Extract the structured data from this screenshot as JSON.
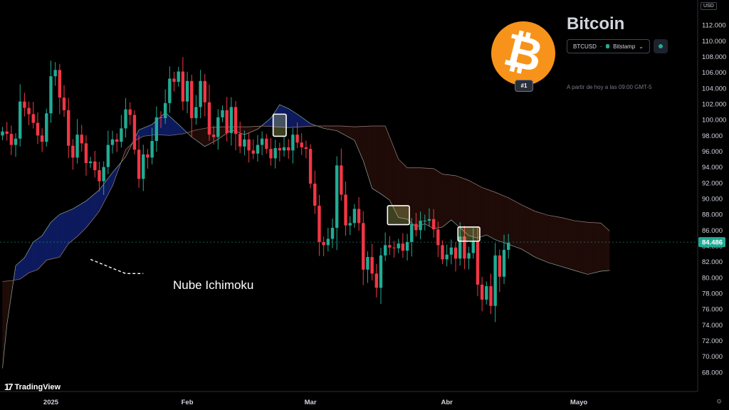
{
  "header": {
    "asset_name": "Bitcoin",
    "symbol": "BTCUSD",
    "exchange": "Bitstamp",
    "rank": "#1",
    "as_of": "A partir de hoy a las 09:00 GMT-5",
    "currency": "USD",
    "logo_glyph": "₿"
  },
  "brand": {
    "name": "TradingView",
    "mark": "17"
  },
  "annotation": {
    "label": "Nube Ichimoku"
  },
  "icons": {
    "logo": "bitcoin-logo-icon",
    "live": "live-status-icon",
    "settings": "gear-icon"
  },
  "colors": {
    "background": "#000000",
    "up": "#22ab94",
    "down": "#f23645",
    "bull_cloud": "#0d1b5e",
    "bear_cloud": "#1f0b08",
    "last_price": "#22ab94",
    "brand_orange": "#f7931a"
  },
  "chart_data": {
    "type": "candlestick",
    "title": "",
    "y_range": [
      67,
      113
    ],
    "y_ticks": [
      "112.000",
      "110.000",
      "108.000",
      "106.000",
      "104.000",
      "102.000",
      "100.000",
      "98.000",
      "96.000",
      "94.000",
      "92.000",
      "90.000",
      "88.000",
      "86.000",
      "84.000",
      "82.000",
      "80.000",
      "78.000",
      "76.000",
      "74.000",
      "72.000",
      "70.000",
      "68.000"
    ],
    "x_labels": [
      {
        "label": "2025",
        "day": 11
      },
      {
        "label": "Feb",
        "day": 42
      },
      {
        "label": "Mar",
        "day": 70
      },
      {
        "label": "Abr",
        "day": 101
      },
      {
        "label": "Mayo",
        "day": 131
      }
    ],
    "last_price": {
      "value": 84.486,
      "label": "84.486"
    },
    "closes": [
      98.5,
      98.2,
      96.8,
      97.6,
      102.3,
      101.5,
      100.7,
      99.6,
      98.0,
      97.2,
      100.8,
      105.5,
      106.3,
      102.8,
      101.2,
      96.7,
      95.2,
      98.1,
      97.0,
      94.5,
      94.7,
      93.6,
      92.2,
      94.0,
      96.8,
      97.5,
      97.2,
      98.9,
      101.3,
      100.6,
      96.2,
      92.5,
      95.6,
      95.2,
      97.3,
      100.3,
      100.2,
      102.1,
      105.2,
      104.8,
      106.1,
      102.3,
      104.9,
      100.2,
      101.6,
      104.9,
      102.2,
      98.1,
      97.8,
      100.3,
      101.2,
      98.3,
      101.6,
      98.2,
      96.6,
      97.5,
      96.1,
      95.7,
      96.8,
      97.6,
      96.3,
      95.1,
      96.4,
      96.1,
      96.5,
      96.1,
      98.1,
      97.1,
      96.5,
      96.3,
      91.9,
      89.1,
      84.5,
      84.1,
      84.9,
      86.3,
      94.2,
      90.5,
      86.6,
      86.9,
      88.7,
      86.9,
      81.0,
      82.6,
      80.5,
      78.7,
      82.8,
      84.1,
      83.8,
      83.7,
      84.3,
      83.4,
      84.5,
      86.8,
      86.0,
      87.2,
      87.2,
      87.4,
      86.1,
      84.1,
      82.3,
      82.9,
      83.8,
      82.4,
      85.2,
      82.4,
      83.1,
      84.6,
      79.1,
      77.2,
      78.9,
      76.4,
      82.8,
      80.1,
      83.5,
      84.4
    ],
    "ichimoku": {
      "description_label": "Nube Ichimoku",
      "span_a": [
        {
          "day": 0,
          "value": 68.5
        },
        {
          "day": 1,
          "value": 74.0
        },
        {
          "day": 3,
          "value": 81.5
        },
        {
          "day": 5,
          "value": 82.5
        },
        {
          "day": 7,
          "value": 84.5
        },
        {
          "day": 9,
          "value": 85.3
        },
        {
          "day": 11,
          "value": 87.0
        },
        {
          "day": 13,
          "value": 88.0
        },
        {
          "day": 16,
          "value": 88.7
        },
        {
          "day": 19,
          "value": 89.7
        },
        {
          "day": 22,
          "value": 91.1
        },
        {
          "day": 25,
          "value": 93.3
        },
        {
          "day": 28,
          "value": 95.3
        },
        {
          "day": 31,
          "value": 98.7
        },
        {
          "day": 34,
          "value": 99.4
        },
        {
          "day": 37,
          "value": 100.9
        },
        {
          "day": 40,
          "value": 99.4
        },
        {
          "day": 43,
          "value": 97.8
        },
        {
          "day": 46,
          "value": 96.6
        },
        {
          "day": 49,
          "value": 97.5
        },
        {
          "day": 52,
          "value": 98.7
        },
        {
          "day": 55,
          "value": 98.1
        },
        {
          "day": 58,
          "value": 98.8
        },
        {
          "day": 61,
          "value": 100.2
        },
        {
          "day": 63,
          "value": 101.9
        },
        {
          "day": 65,
          "value": 101.4
        },
        {
          "day": 67,
          "value": 100.7
        },
        {
          "day": 70,
          "value": 99.5
        },
        {
          "day": 73,
          "value": 98.9
        },
        {
          "day": 76,
          "value": 98.6
        },
        {
          "day": 80,
          "value": 97.4
        },
        {
          "day": 82,
          "value": 94.8
        },
        {
          "day": 84,
          "value": 91.3
        },
        {
          "day": 86,
          "value": 90.6
        },
        {
          "day": 88,
          "value": 89.8
        },
        {
          "day": 90,
          "value": 87.6
        },
        {
          "day": 92,
          "value": 87.4
        },
        {
          "day": 94,
          "value": 86.4
        },
        {
          "day": 96,
          "value": 86.8
        },
        {
          "day": 98,
          "value": 86.2
        },
        {
          "day": 100,
          "value": 86.4
        },
        {
          "day": 102,
          "value": 87.3
        },
        {
          "day": 104,
          "value": 86.3
        },
        {
          "day": 106,
          "value": 85.3
        },
        {
          "day": 108,
          "value": 85.0
        },
        {
          "day": 110,
          "value": 85.4
        },
        {
          "day": 112,
          "value": 84.8
        },
        {
          "day": 115,
          "value": 84.2
        },
        {
          "day": 118,
          "value": 83.6
        },
        {
          "day": 121,
          "value": 82.6
        },
        {
          "day": 124,
          "value": 81.9
        },
        {
          "day": 127,
          "value": 81.4
        },
        {
          "day": 130,
          "value": 80.9
        },
        {
          "day": 133,
          "value": 80.4
        },
        {
          "day": 136,
          "value": 80.8
        },
        {
          "day": 138,
          "value": 80.9
        }
      ],
      "span_b": [
        {
          "day": 0,
          "value": 79.5
        },
        {
          "day": 2,
          "value": 79.6
        },
        {
          "day": 4,
          "value": 79.8
        },
        {
          "day": 6,
          "value": 80.6
        },
        {
          "day": 8,
          "value": 81.0
        },
        {
          "day": 10,
          "value": 82.2
        },
        {
          "day": 13,
          "value": 82.6
        },
        {
          "day": 15,
          "value": 84.3
        },
        {
          "day": 17,
          "value": 85.2
        },
        {
          "day": 19,
          "value": 86.3
        },
        {
          "day": 22,
          "value": 88.4
        },
        {
          "day": 25,
          "value": 91.6
        },
        {
          "day": 28,
          "value": 96.2
        },
        {
          "day": 30,
          "value": 97.3
        },
        {
          "day": 32,
          "value": 97.9
        },
        {
          "day": 35,
          "value": 98.1
        },
        {
          "day": 38,
          "value": 98.0
        },
        {
          "day": 41,
          "value": 98.2
        },
        {
          "day": 44,
          "value": 98.7
        },
        {
          "day": 47,
          "value": 99.0
        },
        {
          "day": 50,
          "value": 99.1
        },
        {
          "day": 53,
          "value": 99.1
        },
        {
          "day": 56,
          "value": 99.1
        },
        {
          "day": 59,
          "value": 99.2
        },
        {
          "day": 62,
          "value": 99.1
        },
        {
          "day": 65,
          "value": 99.0
        },
        {
          "day": 68,
          "value": 99.1
        },
        {
          "day": 71,
          "value": 99.2
        },
        {
          "day": 74,
          "value": 99.2
        },
        {
          "day": 77,
          "value": 99.2
        },
        {
          "day": 80,
          "value": 99.1
        },
        {
          "day": 84,
          "value": 99.2
        },
        {
          "day": 87,
          "value": 99.2
        },
        {
          "day": 90,
          "value": 95.0
        },
        {
          "day": 92,
          "value": 93.9
        },
        {
          "day": 95,
          "value": 93.9
        },
        {
          "day": 98,
          "value": 93.8
        },
        {
          "day": 100,
          "value": 93.1
        },
        {
          "day": 103,
          "value": 92.9
        },
        {
          "day": 106,
          "value": 92.3
        },
        {
          "day": 109,
          "value": 91.4
        },
        {
          "day": 112,
          "value": 90.8
        },
        {
          "day": 115,
          "value": 90.1
        },
        {
          "day": 118,
          "value": 89.2
        },
        {
          "day": 121,
          "value": 88.4
        },
        {
          "day": 124,
          "value": 87.9
        },
        {
          "day": 127,
          "value": 87.6
        },
        {
          "day": 130,
          "value": 87.2
        },
        {
          "day": 133,
          "value": 87.0
        },
        {
          "day": 136,
          "value": 86.9
        },
        {
          "day": 138,
          "value": 85.9
        }
      ]
    },
    "highlights": [
      {
        "day_start": 62,
        "day_end": 64,
        "top": 100.7,
        "bottom": 97.9
      },
      {
        "day_start": 88,
        "day_end": 92,
        "top": 89.1,
        "bottom": 86.7
      },
      {
        "day_start": 104,
        "day_end": 108,
        "top": 86.4,
        "bottom": 84.6
      }
    ],
    "annotation_line": [
      {
        "day": 20,
        "value": 82.3
      },
      {
        "day": 28,
        "value": 80.5
      },
      {
        "day": 32,
        "value": 80.5
      }
    ]
  }
}
